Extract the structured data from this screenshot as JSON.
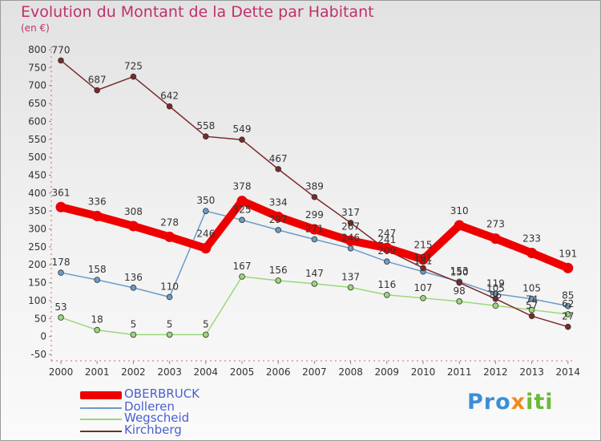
{
  "title": "Evolution du Montant de la Dette par Habitant",
  "unit": "(en €)",
  "brand": {
    "parts": [
      "Pro",
      "x",
      "iti"
    ],
    "colors": [
      "#3b8fd8",
      "#f08a1c",
      "#6bb83a"
    ]
  },
  "chart_data": {
    "type": "line",
    "x": [
      "2000",
      "2001",
      "2002",
      "2003",
      "2004",
      "2005",
      "2006",
      "2007",
      "2008",
      "2009",
      "2010",
      "2011",
      "2012",
      "2013",
      "2014"
    ],
    "ylim": [
      -50,
      800
    ],
    "yticks": [
      "-50",
      "0",
      "50",
      "100",
      "150",
      "200",
      "250",
      "300",
      "350",
      "400",
      "450",
      "500",
      "550",
      "600",
      "650",
      "700",
      "750",
      "800"
    ],
    "grid": false,
    "legend_position": "bottom-left",
    "series": [
      {
        "name": "OBERBRUCK",
        "color": "#ee0000",
        "width": 10,
        "values": [
          361,
          336,
          308,
          278,
          246,
          378,
          334,
          299,
          267,
          247,
          215,
          310,
          273,
          233,
          191
        ],
        "labels": [
          "361",
          "336",
          "308",
          "278",
          "246",
          "378",
          "334",
          "299",
          "267",
          "247",
          "215",
          "310",
          "273",
          "233",
          "191"
        ]
      },
      {
        "name": "Dolleren",
        "color": "#6a9cc8",
        "width": 1.5,
        "values": [
          178,
          158,
          136,
          110,
          350,
          325,
          297,
          271,
          246,
          209,
          181,
          153,
          119,
          105,
          85
        ],
        "labels": [
          "178",
          "158",
          "136",
          "110",
          "350",
          "325",
          "297",
          "271",
          "246",
          "209",
          "181",
          "153",
          "119",
          "105",
          "85"
        ]
      },
      {
        "name": "Wegscheid",
        "color": "#9ad878",
        "width": 1.5,
        "values": [
          53,
          18,
          5,
          5,
          5,
          167,
          156,
          147,
          137,
          116,
          107,
          98,
          86,
          74,
          62
        ],
        "labels": [
          "53",
          "18",
          "5",
          "5",
          "5",
          "167",
          "156",
          "147",
          "137",
          "116",
          "107",
          "98",
          "86",
          "74",
          "62"
        ]
      },
      {
        "name": "Kirchberg",
        "color": "#7a2a2a",
        "width": 1.5,
        "values": [
          770,
          687,
          725,
          642,
          558,
          549,
          467,
          389,
          317,
          241,
          191,
          150,
          105,
          57,
          27
        ],
        "labels": [
          "770",
          "687",
          "725",
          "642",
          "558",
          "549",
          "467",
          "389",
          "317",
          "241",
          "191",
          "150",
          "105",
          "57",
          "27"
        ]
      }
    ]
  }
}
